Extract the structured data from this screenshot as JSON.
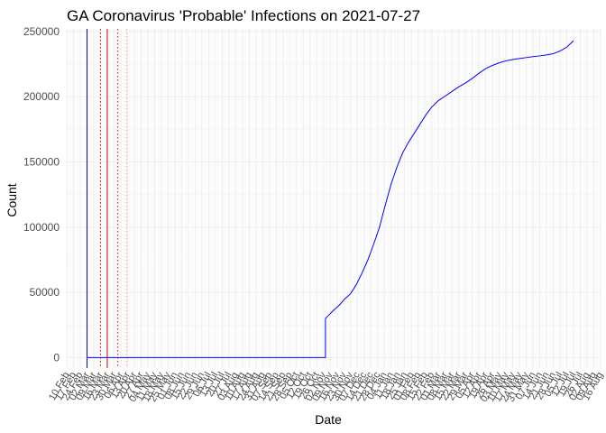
{
  "chart_data": {
    "type": "line",
    "title": "GA Coronavirus 'Probable' Infections on 2021-07-27",
    "xlabel": "Date",
    "ylabel": "Count",
    "xlim": [
      "2020-02-10",
      "2021-08-16"
    ],
    "ylim": [
      -8000,
      252000
    ],
    "grid": true,
    "legend": "none",
    "y_ticks": [
      0,
      50000,
      100000,
      150000,
      200000,
      250000
    ],
    "x_tick_labels": [
      "10 Feb",
      "17 Feb",
      "24 Feb",
      "02 Mar",
      "09 Mar",
      "16 Mar",
      "23 Mar",
      "30 Mar",
      "06 Apr",
      "13 Apr",
      "20 Apr",
      "27 Apr",
      "04 May",
      "11 May",
      "18 May",
      "25 May",
      "01 Jun",
      "08 Jun",
      "15 Jun",
      "22 Jun",
      "29 Jun",
      "06 Jul",
      "13 Jul",
      "20 Jul",
      "27 Jul",
      "03 Aug",
      "10 Aug",
      "17 Aug",
      "24 Aug",
      "31 Aug",
      "07 Sep",
      "14 Sep",
      "21 Sep",
      "28 Sep",
      "05 Oct",
      "12 Oct",
      "19 Oct",
      "26 Oct",
      "02 Nov",
      "09 Nov",
      "16 Nov",
      "23 Nov",
      "30 Nov",
      "07 Dec",
      "14 Dec",
      "21 Dec",
      "28 Dec",
      "04 Jan",
      "11 Jan",
      "18 Jan",
      "25 Jan",
      "01 Feb",
      "08 Feb",
      "15 Feb",
      "22 Feb",
      "01 Mar",
      "08 Mar",
      "15 Mar",
      "22 Mar",
      "29 Mar",
      "05 Apr",
      "12 Apr",
      "19 Apr",
      "26 Apr",
      "03 May",
      "10 May",
      "17 May",
      "24 May",
      "31 May",
      "07 Jun",
      "14 Jun",
      "21 Jun",
      "28 Jun",
      "05 Jul",
      "12 Jul",
      "19 Jul",
      "26 Jul",
      "02 Aug",
      "09 Aug",
      "16 Aug"
    ],
    "vlines": [
      {
        "date": "2020-03-02",
        "color": "#0000cc",
        "style": "solid"
      },
      {
        "date": "2020-03-16",
        "color": "#cc0000",
        "style": "dotted"
      },
      {
        "date": "2020-03-23",
        "color": "#cc0000",
        "style": "solid"
      },
      {
        "date": "2020-04-03",
        "color": "#cc0000",
        "style": "dotted"
      },
      {
        "date": "2020-04-12",
        "color": "#ff9999",
        "style": "dotted"
      }
    ],
    "series": [
      {
        "color": "#0000ff",
        "points": [
          [
            "2020-03-02",
            0
          ],
          [
            "2020-11-03",
            0
          ],
          [
            "2020-11-04",
            30000
          ],
          [
            "2020-11-08",
            33000
          ],
          [
            "2020-11-12",
            36000
          ],
          [
            "2020-11-18",
            40000
          ],
          [
            "2020-11-24",
            45000
          ],
          [
            "2020-11-30",
            49000
          ],
          [
            "2020-12-06",
            56000
          ],
          [
            "2020-12-12",
            65000
          ],
          [
            "2020-12-18",
            75000
          ],
          [
            "2020-12-24",
            87000
          ],
          [
            "2020-12-30",
            100000
          ],
          [
            "2021-01-05",
            117000
          ],
          [
            "2021-01-11",
            133000
          ],
          [
            "2021-01-17",
            146000
          ],
          [
            "2021-01-23",
            157000
          ],
          [
            "2021-01-29",
            165000
          ],
          [
            "2021-02-04",
            172000
          ],
          [
            "2021-02-10",
            179000
          ],
          [
            "2021-02-16",
            186000
          ],
          [
            "2021-02-22",
            192000
          ],
          [
            "2021-03-01",
            197000
          ],
          [
            "2021-03-08",
            200500
          ],
          [
            "2021-03-15",
            204000
          ],
          [
            "2021-03-22",
            207500
          ],
          [
            "2021-03-29",
            210500
          ],
          [
            "2021-04-05",
            214000
          ],
          [
            "2021-04-12",
            218000
          ],
          [
            "2021-04-19",
            221500
          ],
          [
            "2021-04-26",
            224000
          ],
          [
            "2021-05-03",
            226000
          ],
          [
            "2021-05-10",
            227500
          ],
          [
            "2021-05-17",
            228500
          ],
          [
            "2021-05-24",
            229300
          ],
          [
            "2021-05-31",
            230000
          ],
          [
            "2021-06-07",
            230700
          ],
          [
            "2021-06-14",
            231300
          ],
          [
            "2021-06-21",
            232000
          ],
          [
            "2021-06-28",
            233000
          ],
          [
            "2021-07-05",
            235000
          ],
          [
            "2021-07-12",
            238000
          ],
          [
            "2021-07-19",
            243000
          ]
        ]
      }
    ]
  }
}
